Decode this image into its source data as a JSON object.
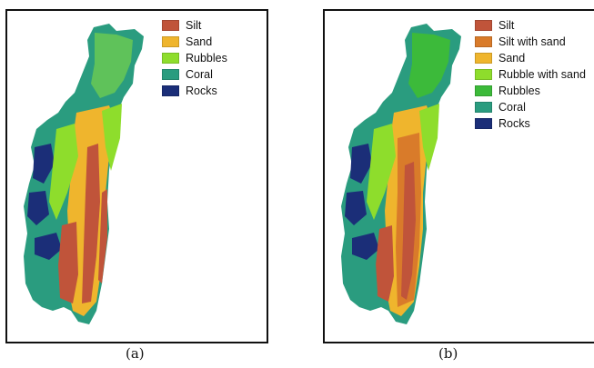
{
  "colors": {
    "silt": "#c0543a",
    "silt_with_sand": "#d97b2a",
    "sand": "#efb52d",
    "rubble_with_sand": "#8edd2c",
    "rubbles": "#3cba3a",
    "coral": "#2a9c7f",
    "rocks": "#1b2e78"
  },
  "panel_a": {
    "caption": "(a)",
    "legend": [
      {
        "label": "Silt",
        "color": "#c0543a"
      },
      {
        "label": "Sand",
        "color": "#efb52d"
      },
      {
        "label": "Rubbles",
        "color": "#8edd2c"
      },
      {
        "label": "Coral",
        "color": "#2a9c7f"
      },
      {
        "label": "Rocks",
        "color": "#1b2e78"
      }
    ]
  },
  "panel_b": {
    "caption": "(b)",
    "legend": [
      {
        "label": "Silt",
        "color": "#c0543a"
      },
      {
        "label": "Silt with sand",
        "color": "#d97b2a"
      },
      {
        "label": "Sand",
        "color": "#efb52d"
      },
      {
        "label": "Rubble with sand",
        "color": "#8edd2c"
      },
      {
        "label": "Rubbles",
        "color": "#3cba3a"
      },
      {
        "label": "Coral",
        "color": "#2a9c7f"
      },
      {
        "label": "Rocks",
        "color": "#1b2e78"
      }
    ]
  }
}
